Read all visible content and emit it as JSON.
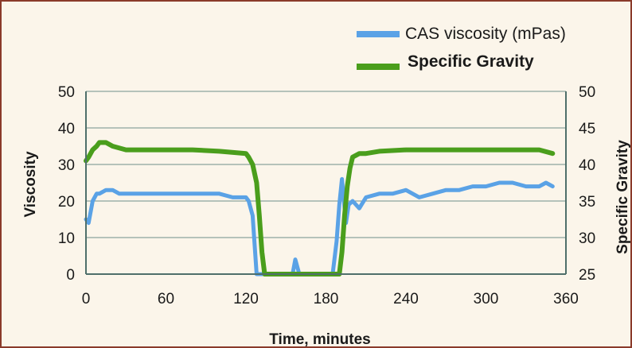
{
  "chart_data": {
    "type": "line",
    "title": "",
    "xlabel": "Time, minutes",
    "ylabel_left": "Viscosity",
    "ylabel_right": "Specific Gravity",
    "xlim": [
      0,
      360
    ],
    "ylim_left": [
      0,
      50
    ],
    "ylim_right": [
      25,
      50
    ],
    "x_ticks": [
      "0",
      "60",
      "120",
      "180",
      "240",
      "300",
      "360"
    ],
    "y_ticks_left": [
      "0",
      "10",
      "20",
      "30",
      "40",
      "50"
    ],
    "y_ticks_right": [
      "25",
      "30",
      "35",
      "40",
      "45",
      "50"
    ],
    "grid": "horizontal",
    "legend_position": "top-right",
    "series": [
      {
        "name": "CAS viscosity (mPas)",
        "axis": "left",
        "color": "#5aa2e6",
        "x": [
          0,
          2,
          5,
          8,
          10,
          15,
          20,
          25,
          30,
          40,
          50,
          60,
          70,
          80,
          90,
          100,
          110,
          120,
          122,
          125,
          128,
          130,
          134,
          150,
          155,
          157,
          160,
          165,
          185,
          188,
          190,
          192,
          195,
          197,
          200,
          205,
          210,
          220,
          230,
          240,
          250,
          260,
          270,
          280,
          290,
          300,
          310,
          320,
          330,
          340,
          345,
          350
        ],
        "y": [
          15,
          14,
          20,
          22,
          22,
          23,
          23,
          22,
          22,
          22,
          22,
          22,
          22,
          22,
          22,
          22,
          21,
          21,
          20,
          16,
          0,
          0,
          0,
          0,
          0,
          4,
          0,
          0,
          0,
          9,
          19,
          26,
          14,
          19,
          20,
          18,
          21,
          22,
          22,
          23,
          21,
          22,
          23,
          23,
          24,
          24,
          25,
          25,
          24,
          24,
          25,
          24
        ]
      },
      {
        "name": "Specific Gravity",
        "axis": "right",
        "color": "#4a9e1c",
        "x": [
          0,
          2,
          5,
          8,
          10,
          15,
          20,
          30,
          40,
          60,
          80,
          100,
          120,
          122,
          125,
          128,
          130,
          132,
          134,
          190,
          192,
          194,
          196,
          198,
          200,
          205,
          210,
          220,
          240,
          260,
          280,
          300,
          320,
          340,
          350
        ],
        "y": [
          40.5,
          41,
          42,
          42.5,
          43,
          43,
          42.5,
          42,
          42,
          42,
          42,
          41.8,
          41.5,
          41,
          40,
          37.5,
          33,
          28,
          25,
          25,
          28,
          33,
          37,
          39.5,
          41,
          41.5,
          41.5,
          41.8,
          42,
          42,
          42,
          42,
          42,
          42,
          41.5
        ]
      }
    ]
  }
}
